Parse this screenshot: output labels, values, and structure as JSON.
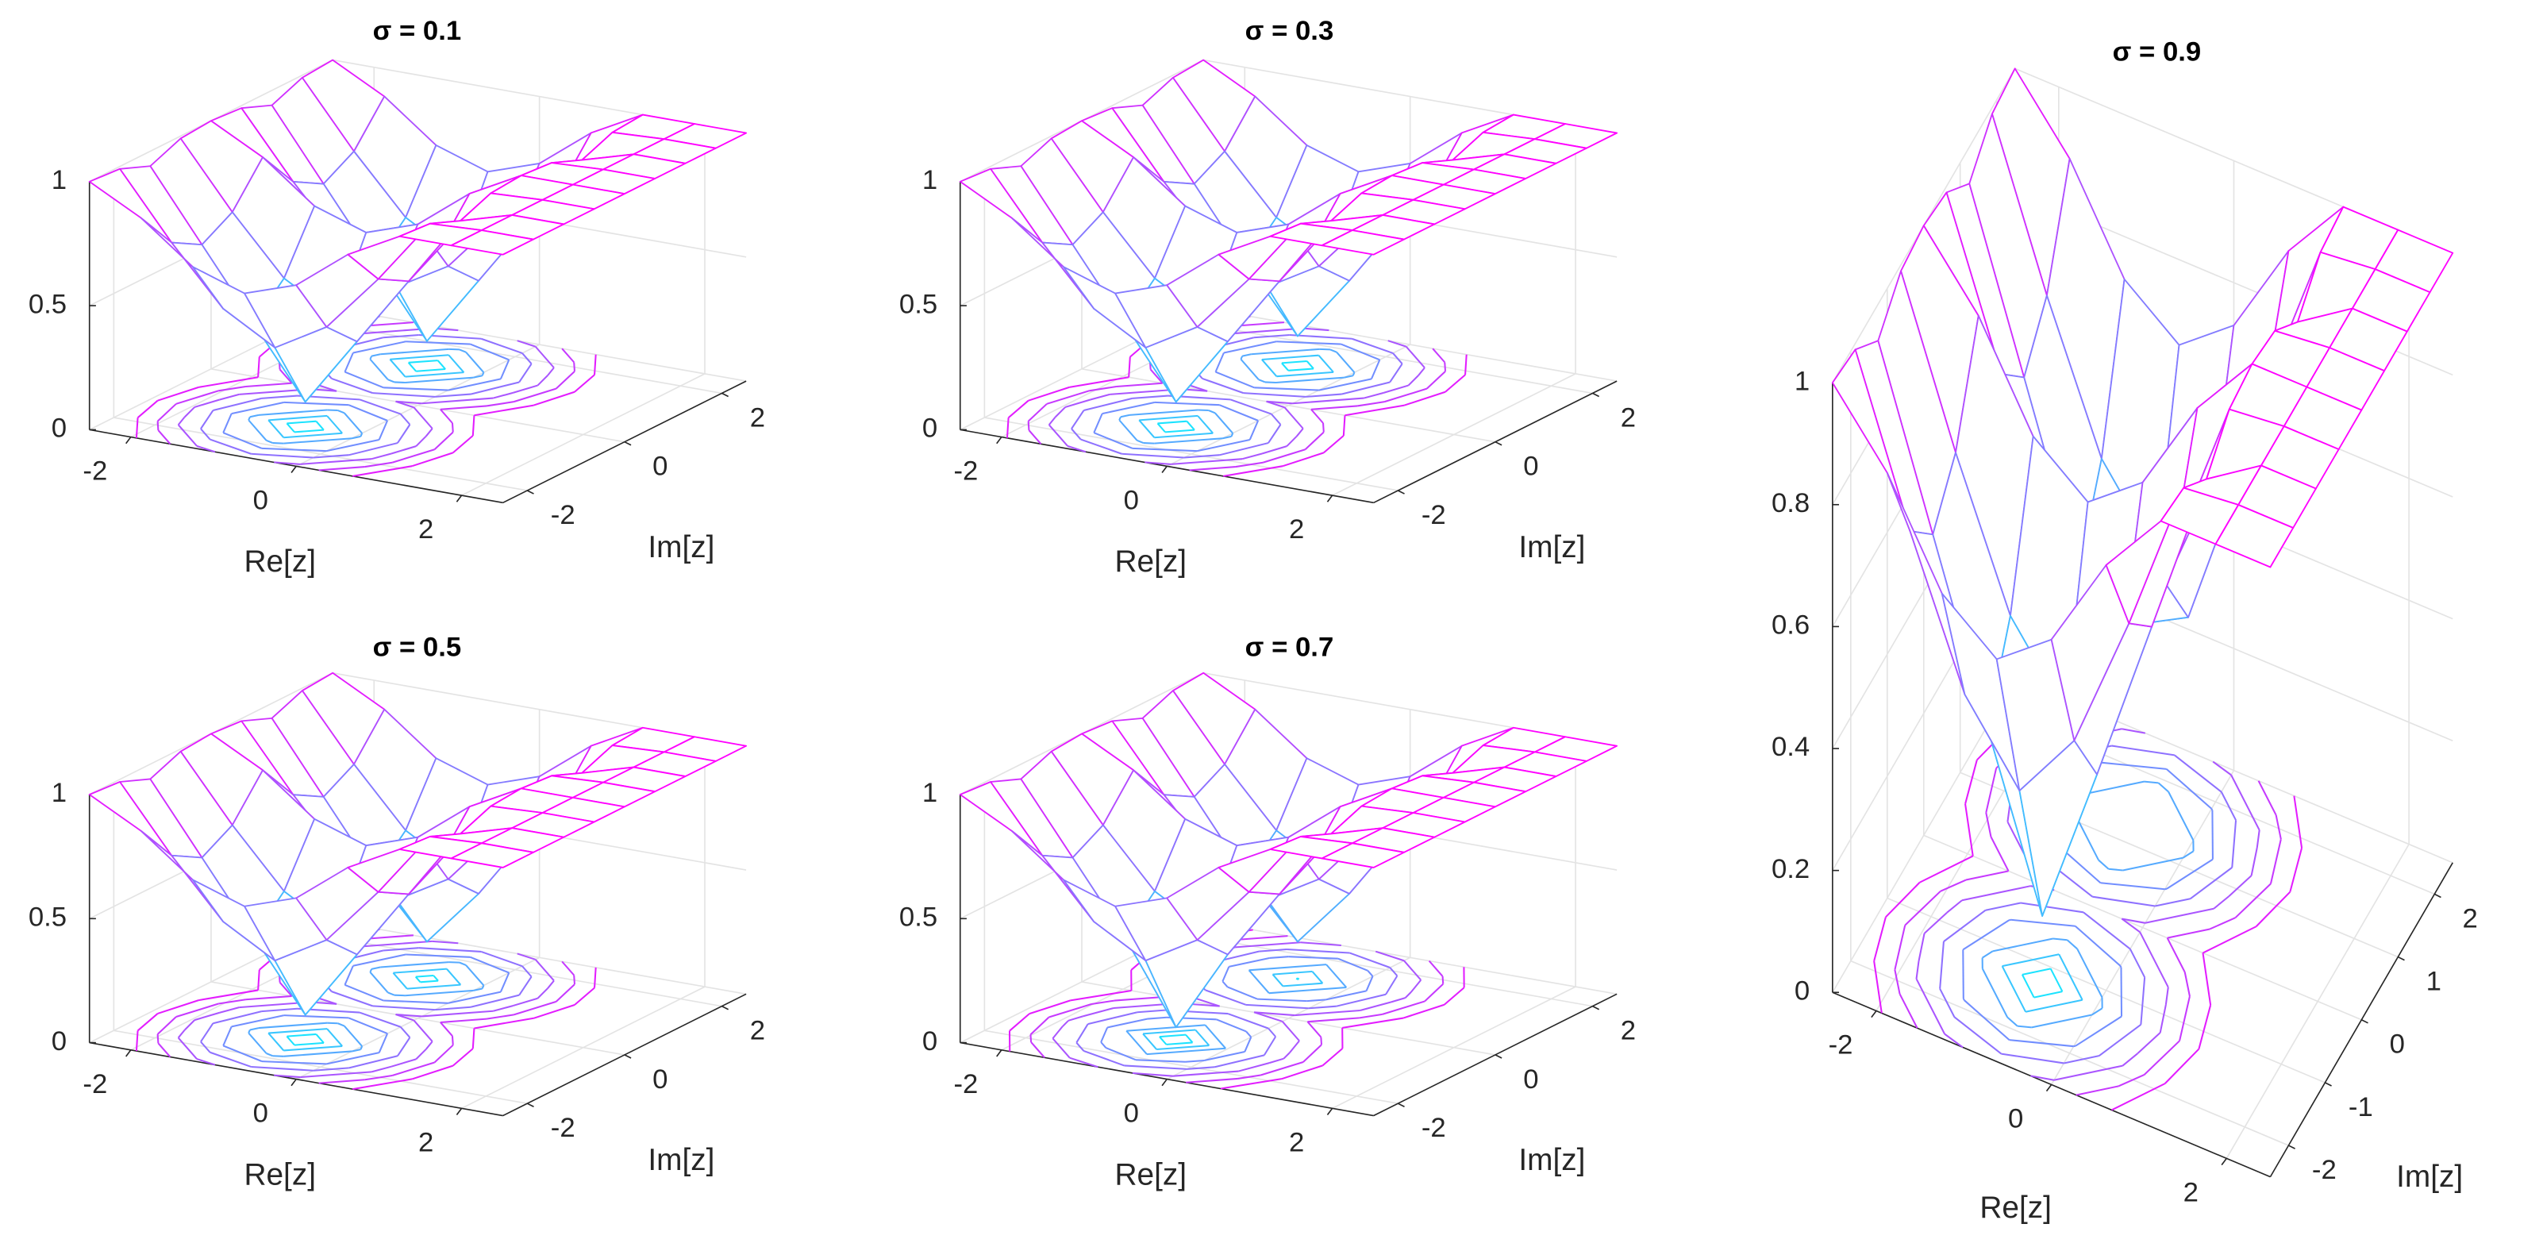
{
  "chart_data": [
    {
      "type": "meshc",
      "title": "σ = 0.1",
      "xlabel": "Re[z]",
      "ylabel": "Im[z]",
      "colormap": "cool",
      "grid": true,
      "xlim": [
        -2.5,
        2.5
      ],
      "ylim": [
        -2.5,
        2.5
      ],
      "zlim": [
        0,
        1
      ],
      "xticks": [
        -2,
        0,
        2
      ],
      "yticks": [
        -2,
        0,
        2
      ],
      "zticks": [
        0,
        0.5,
        1
      ],
      "x": [
        -2.5,
        -1.875,
        -1.25,
        -0.625,
        0,
        0.625,
        1.25,
        1.875,
        2.5
      ],
      "y": [
        -2.5,
        -1.875,
        -1.25,
        -0.625,
        0,
        0.625,
        1.25,
        1.875,
        2.5
      ],
      "z": [
        [
          1,
          0.89,
          0.73,
          0.66,
          0.73,
          0.89,
          1,
          1,
          1
        ],
        [
          0.99,
          0.73,
          0.5,
          0.38,
          0.5,
          0.73,
          0.99,
          1,
          1
        ],
        [
          0.94,
          0.66,
          0.38,
          0.1,
          0.38,
          0.66,
          0.94,
          1,
          1
        ],
        [
          0.99,
          0.73,
          0.5,
          0.38,
          0.5,
          0.73,
          0.99,
          1,
          1
        ],
        [
          1,
          0.89,
          0.73,
          0.66,
          0.73,
          0.89,
          1,
          1,
          1
        ],
        [
          0.99,
          0.73,
          0.5,
          0.38,
          0.5,
          0.73,
          0.99,
          1,
          1
        ],
        [
          0.94,
          0.66,
          0.38,
          0.1,
          0.38,
          0.66,
          0.94,
          1,
          1
        ],
        [
          0.99,
          0.73,
          0.5,
          0.38,
          0.5,
          0.73,
          0.99,
          1,
          1
        ],
        [
          1,
          0.89,
          0.73,
          0.66,
          0.73,
          0.89,
          1,
          1,
          1
        ]
      ]
    },
    {
      "type": "meshc",
      "title": "σ = 0.3",
      "xlabel": "Re[z]",
      "ylabel": "Im[z]",
      "colormap": "cool",
      "grid": true,
      "xlim": [
        -2.5,
        2.5
      ],
      "ylim": [
        -2.5,
        2.5
      ],
      "zlim": [
        0,
        1
      ],
      "xticks": [
        -2,
        0,
        2
      ],
      "yticks": [
        -2,
        0,
        2
      ],
      "zticks": [
        0,
        0.5,
        1
      ],
      "x": [
        -2.5,
        -1.875,
        -1.25,
        -0.625,
        0,
        0.625,
        1.25,
        1.875,
        2.5
      ],
      "y": [
        -2.5,
        -1.875,
        -1.25,
        -0.625,
        0,
        0.625,
        1.25,
        1.875,
        2.5
      ],
      "z": [
        [
          1,
          0.89,
          0.73,
          0.66,
          0.73,
          0.89,
          1,
          1,
          1
        ],
        [
          0.99,
          0.73,
          0.5,
          0.38,
          0.5,
          0.73,
          0.99,
          1,
          1
        ],
        [
          0.94,
          0.66,
          0.38,
          0.1,
          0.38,
          0.66,
          0.94,
          1,
          1
        ],
        [
          0.99,
          0.73,
          0.5,
          0.38,
          0.5,
          0.73,
          0.99,
          1,
          1
        ],
        [
          1,
          0.89,
          0.73,
          0.66,
          0.73,
          0.89,
          1,
          1,
          1
        ],
        [
          0.99,
          0.73,
          0.5,
          0.38,
          0.5,
          0.73,
          0.99,
          1,
          1
        ],
        [
          0.94,
          0.66,
          0.38,
          0.12,
          0.38,
          0.66,
          0.94,
          1,
          1
        ],
        [
          0.99,
          0.73,
          0.5,
          0.38,
          0.5,
          0.73,
          0.99,
          1,
          1
        ],
        [
          1,
          0.89,
          0.73,
          0.66,
          0.73,
          0.89,
          1,
          1,
          1
        ]
      ]
    },
    {
      "type": "meshc",
      "title": "σ = 0.5",
      "xlabel": "Re[z]",
      "ylabel": "Im[z]",
      "colormap": "cool",
      "grid": true,
      "xlim": [
        -2.5,
        2.5
      ],
      "ylim": [
        -2.5,
        2.5
      ],
      "zlim": [
        0,
        1
      ],
      "xticks": [
        -2,
        0,
        2
      ],
      "yticks": [
        -2,
        0,
        2
      ],
      "zticks": [
        0,
        0.5,
        1
      ],
      "x": [
        -2.5,
        -1.875,
        -1.25,
        -0.625,
        0,
        0.625,
        1.25,
        1.875,
        2.5
      ],
      "y": [
        -2.5,
        -1.875,
        -1.25,
        -0.625,
        0,
        0.625,
        1.25,
        1.875,
        2.5
      ],
      "z": [
        [
          1,
          0.89,
          0.73,
          0.66,
          0.73,
          0.89,
          1,
          1,
          1
        ],
        [
          0.99,
          0.73,
          0.5,
          0.38,
          0.5,
          0.73,
          0.99,
          1,
          1
        ],
        [
          0.94,
          0.66,
          0.38,
          0.1,
          0.38,
          0.66,
          0.94,
          1,
          1
        ],
        [
          0.99,
          0.73,
          0.5,
          0.38,
          0.5,
          0.73,
          0.99,
          1,
          1
        ],
        [
          1,
          0.89,
          0.73,
          0.66,
          0.73,
          0.89,
          1,
          1,
          1
        ],
        [
          0.99,
          0.73,
          0.5,
          0.38,
          0.5,
          0.73,
          0.99,
          1,
          1
        ],
        [
          0.94,
          0.66,
          0.38,
          0.15,
          0.38,
          0.66,
          0.94,
          1,
          1
        ],
        [
          0.99,
          0.73,
          0.5,
          0.38,
          0.5,
          0.73,
          0.99,
          1,
          1
        ],
        [
          1,
          0.89,
          0.73,
          0.66,
          0.73,
          0.89,
          1,
          1,
          1
        ]
      ]
    },
    {
      "type": "meshc",
      "title": "σ = 0.7",
      "xlabel": "Re[z]",
      "ylabel": "Im[z]",
      "colormap": "cool",
      "grid": true,
      "xlim": [
        -2.5,
        2.5
      ],
      "ylim": [
        -2.5,
        2.5
      ],
      "zlim": [
        0,
        1
      ],
      "xticks": [
        -2,
        0,
        2
      ],
      "yticks": [
        -2,
        0,
        2
      ],
      "zticks": [
        0,
        0.5,
        1
      ],
      "x": [
        -2.5,
        -1.875,
        -1.25,
        -0.625,
        0,
        0.625,
        1.25,
        1.875,
        2.5
      ],
      "y": [
        -2.5,
        -1.875,
        -1.25,
        -0.625,
        0,
        0.625,
        1.25,
        1.875,
        2.5
      ],
      "z": [
        [
          1,
          0.89,
          0.73,
          0.66,
          0.73,
          0.89,
          1,
          1,
          1
        ],
        [
          0.99,
          0.73,
          0.5,
          0.38,
          0.5,
          0.73,
          0.99,
          1,
          1
        ],
        [
          0.94,
          0.66,
          0.38,
          0.05,
          0.38,
          0.66,
          0.94,
          1,
          1
        ],
        [
          0.99,
          0.73,
          0.5,
          0.38,
          0.5,
          0.73,
          0.99,
          1,
          1
        ],
        [
          1,
          0.89,
          0.73,
          0.66,
          0.73,
          0.89,
          1,
          1,
          1
        ],
        [
          0.99,
          0.73,
          0.5,
          0.38,
          0.5,
          0.73,
          0.99,
          1,
          1
        ],
        [
          0.94,
          0.66,
          0.38,
          0.15,
          0.38,
          0.66,
          0.94,
          1,
          1
        ],
        [
          0.99,
          0.73,
          0.5,
          0.38,
          0.5,
          0.73,
          0.99,
          1,
          1
        ],
        [
          1,
          0.89,
          0.73,
          0.66,
          0.73,
          0.89,
          1,
          1,
          1
        ]
      ]
    },
    {
      "type": "meshc",
      "title": "σ = 0.9",
      "xlabel": "Re[z]",
      "ylabel": "Im[z]",
      "colormap": "cool",
      "grid": true,
      "xlim": [
        -2.5,
        2.5
      ],
      "ylim": [
        -2.5,
        2.5
      ],
      "zlim": [
        0,
        1
      ],
      "xticks": [
        -2,
        0,
        2
      ],
      "yticks": [
        -2,
        -1,
        0,
        1,
        2
      ],
      "zticks": [
        0,
        0.2,
        0.4,
        0.6,
        0.8,
        1
      ],
      "x": [
        -2.5,
        -1.875,
        -1.25,
        -0.625,
        0,
        0.625,
        1.25,
        1.875,
        2.5
      ],
      "y": [
        -2.5,
        -1.875,
        -1.25,
        -0.625,
        0,
        0.625,
        1.25,
        1.875,
        2.5
      ],
      "z": [
        [
          1,
          0.89,
          0.73,
          0.66,
          0.73,
          0.89,
          1,
          1,
          1
        ],
        [
          0.99,
          0.73,
          0.5,
          0.38,
          0.5,
          0.73,
          0.99,
          1,
          1
        ],
        [
          0.94,
          0.66,
          0.38,
          0.11,
          0.38,
          0.66,
          0.94,
          1,
          1
        ],
        [
          0.99,
          0.73,
          0.5,
          0.38,
          0.5,
          0.73,
          0.99,
          1,
          1
        ],
        [
          1,
          0.89,
          0.73,
          0.66,
          0.73,
          0.89,
          1,
          1,
          1
        ],
        [
          0.99,
          0.73,
          0.5,
          0.38,
          0.5,
          0.73,
          0.99,
          1,
          1
        ],
        [
          0.94,
          0.66,
          0.38,
          0.33,
          0.38,
          0.66,
          0.94,
          1,
          1
        ],
        [
          0.99,
          0.73,
          0.5,
          0.38,
          0.5,
          0.73,
          0.99,
          1,
          1
        ],
        [
          1,
          0.89,
          0.73,
          0.66,
          0.73,
          0.89,
          1,
          1,
          1
        ]
      ]
    }
  ]
}
